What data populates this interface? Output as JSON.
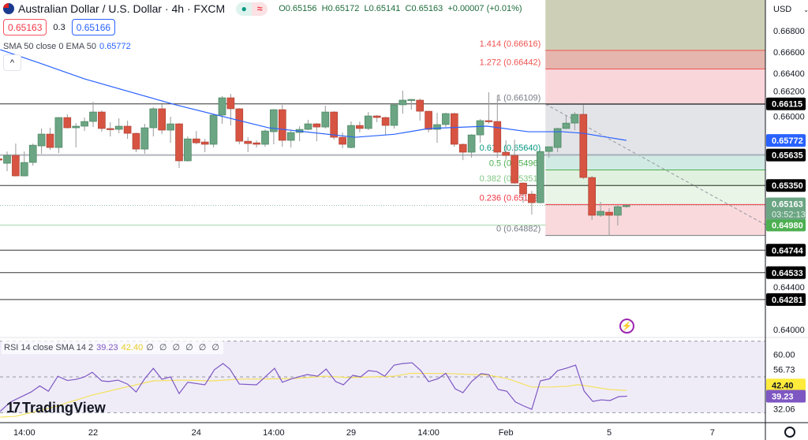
{
  "header": {
    "title": "Australian Dollar / U.S. Dollar · 4h · FXCM",
    "open": "O0.65156",
    "high": "H0.65172",
    "low": "L0.65141",
    "close": "C0.65163",
    "change": "+0.00007 (+0.01%)",
    "market_status_icon": "green-dot",
    "data_icon": "approx"
  },
  "trade": {
    "sell": "0.65163",
    "spread": "0.3",
    "buy": "0.65166"
  },
  "indicator": {
    "label": "SMA 50 close 0 EMA 50",
    "value": "0.65772"
  },
  "rsi_legend": {
    "label": "RSI 14 close SMA 14 2",
    "rsi": "39.23",
    "sma": "42.40",
    "nulls": "∅ ∅ ∅ ∅ ∅ ∅"
  },
  "currency": "USD",
  "logo": "TradingView",
  "colors": {
    "up": "#6ba583",
    "down": "#d75442",
    "ema": "#2962ff",
    "rsi": "#7e57c2",
    "rsi_sma": "#f5e15c",
    "rsi_bg": "#efecf8"
  },
  "chart_data": {
    "type": "candlestick",
    "price_axis": {
      "range": [
        0.6396,
        0.669
      ],
      "ticks": [
        "0.66800",
        "0.66600",
        "0.66400",
        "0.66200",
        "0.66000",
        "0.64400",
        "0.64000"
      ],
      "tick_values": [
        0.668,
        0.666,
        0.664,
        0.662,
        0.66,
        0.644,
        0.64
      ]
    },
    "time_labels": [
      "14:00",
      "22",
      "24",
      "14:00",
      "29",
      "14:00",
      "Feb",
      "5",
      "7"
    ],
    "time_label_index": [
      4,
      12,
      24,
      33,
      42,
      51,
      60,
      72,
      84
    ],
    "candles": [
      [
        0.656,
        0.6562,
        0.6557,
        0.65588
      ],
      [
        0.65558,
        0.65669,
        0.65484,
        0.65632
      ],
      [
        0.65632,
        0.65743,
        0.65435,
        0.6544
      ],
      [
        0.6544,
        0.65669,
        0.65435,
        0.65566
      ],
      [
        0.65566,
        0.65743,
        0.65536,
        0.65728
      ],
      [
        0.65721,
        0.65884,
        0.65647,
        0.65832
      ],
      [
        0.65832,
        0.65891,
        0.65684,
        0.65706
      ],
      [
        0.65706,
        0.6599,
        0.65654,
        0.65987
      ],
      [
        0.65987,
        0.66017,
        0.65884,
        0.65891
      ],
      [
        0.65891,
        0.65935,
        0.65706,
        0.65906
      ],
      [
        0.65906,
        0.65987,
        0.65861,
        0.6595
      ],
      [
        0.6595,
        0.66135,
        0.65898,
        0.66039
      ],
      [
        0.66039,
        0.66054,
        0.65854,
        0.65884
      ],
      [
        0.65884,
        0.65943,
        0.6581,
        0.65876
      ],
      [
        0.65876,
        0.6598,
        0.65839,
        0.65906
      ],
      [
        0.65906,
        0.65958,
        0.65787,
        0.65839
      ],
      [
        0.65839,
        0.65845,
        0.65662,
        0.65691
      ],
      [
        0.65691,
        0.65928,
        0.65647,
        0.65891
      ],
      [
        0.65891,
        0.66084,
        0.6581,
        0.66069
      ],
      [
        0.66069,
        0.66113,
        0.65832,
        0.65869
      ],
      [
        0.65869,
        0.65995,
        0.6575,
        0.65928
      ],
      [
        0.65928,
        0.65935,
        0.65514,
        0.65581
      ],
      [
        0.65581,
        0.6581,
        0.65575,
        0.65787
      ],
      [
        0.65787,
        0.65861,
        0.65736,
        0.6575
      ],
      [
        0.65758,
        0.65787,
        0.65662,
        0.65736
      ],
      [
        0.65736,
        0.66015,
        0.65706,
        0.6601
      ],
      [
        0.6601,
        0.66187,
        0.65928,
        0.66172
      ],
      [
        0.66172,
        0.66209,
        0.65913,
        0.66069
      ],
      [
        0.66069,
        0.66075,
        0.65736,
        0.65765
      ],
      [
        0.65765,
        0.65802,
        0.65662,
        0.65743
      ],
      [
        0.6575,
        0.65773,
        0.65706,
        0.65736
      ],
      [
        0.65736,
        0.65876,
        0.65713,
        0.65861
      ],
      [
        0.65854,
        0.66065,
        0.65736,
        0.66061
      ],
      [
        0.66061,
        0.66106,
        0.65713,
        0.65773
      ],
      [
        0.65773,
        0.65869,
        0.65706,
        0.65847
      ],
      [
        0.65847,
        0.65906,
        0.65765,
        0.65876
      ],
      [
        0.65876,
        0.65965,
        0.65869,
        0.65928
      ],
      [
        0.65928,
        0.65935,
        0.65765,
        0.65898
      ],
      [
        0.65898,
        0.66098,
        0.65884,
        0.66039
      ],
      [
        0.66039,
        0.66046,
        0.6578,
        0.65802
      ],
      [
        0.65802,
        0.65847,
        0.65699,
        0.65736
      ],
      [
        0.65706,
        0.6595,
        0.65699,
        0.65913
      ],
      [
        0.65913,
        0.6595,
        0.65847,
        0.65884
      ],
      [
        0.65884,
        0.66039,
        0.65869,
        0.66002
      ],
      [
        0.66002,
        0.6601,
        0.65943,
        0.65987
      ],
      [
        0.65987,
        0.65995,
        0.65824,
        0.65913
      ],
      [
        0.65913,
        0.66113,
        0.65884,
        0.66106
      ],
      [
        0.66106,
        0.66239,
        0.66024,
        0.6615
      ],
      [
        0.6615,
        0.6616,
        0.66061,
        0.66157
      ],
      [
        0.6615,
        0.66165,
        0.65958,
        0.66046
      ],
      [
        0.66046,
        0.6605,
        0.65847,
        0.65876
      ],
      [
        0.65876,
        0.66032,
        0.6575,
        0.65921
      ],
      [
        0.65921,
        0.66032,
        0.65898,
        0.66024
      ],
      [
        0.66024,
        0.66032,
        0.65713,
        0.65736
      ],
      [
        0.65736,
        0.65743,
        0.65588,
        0.65662
      ],
      [
        0.65662,
        0.6583,
        0.6561,
        0.65824
      ],
      [
        0.65824,
        0.65972,
        0.6575,
        0.65958
      ],
      [
        0.65958,
        0.66224,
        0.65928,
        0.6595
      ],
      [
        0.6595,
        0.66194,
        0.6561,
        0.65662
      ],
      [
        0.65662,
        0.65773,
        0.65595,
        0.65632
      ],
      [
        0.65632,
        0.6578,
        0.65366,
        0.65373
      ],
      [
        0.65373,
        0.6538,
        0.65189,
        0.6527
      ],
      [
        0.6527,
        0.653,
        0.65078,
        0.65189
      ],
      [
        0.65189,
        0.65675,
        0.65182,
        0.65669
      ],
      [
        0.65669,
        0.65715,
        0.6561,
        0.65713
      ],
      [
        0.65706,
        0.65891,
        0.65662,
        0.65884
      ],
      [
        0.65884,
        0.66002,
        0.6588,
        0.65935
      ],
      [
        0.65935,
        0.66039,
        0.65869,
        0.66017
      ],
      [
        0.66017,
        0.66106,
        0.6541,
        0.65425
      ],
      [
        0.65425,
        0.6544,
        0.65027,
        0.65071
      ],
      [
        0.65071,
        0.65196,
        0.65056,
        0.65108
      ],
      [
        0.651,
        0.65137,
        0.64882,
        0.65071
      ],
      [
        0.65071,
        0.65167,
        0.64975,
        0.65152
      ],
      [
        0.65156,
        0.65172,
        0.65141,
        0.65163
      ]
    ],
    "ema50": [
      [
        1.2,
        0.66623
      ],
      [
        5.8,
        0.66497
      ],
      [
        11,
        0.66349
      ],
      [
        21.6,
        0.66106
      ],
      [
        32.4,
        0.65891
      ],
      [
        42.5,
        0.65802
      ],
      [
        47,
        0.6583
      ],
      [
        51,
        0.65884
      ],
      [
        57.8,
        0.65906
      ],
      [
        62.6,
        0.65854
      ],
      [
        66.6,
        0.65854
      ],
      [
        69,
        0.65839
      ],
      [
        74,
        0.65773
      ]
    ],
    "horizontal_levels": [
      {
        "price": 0.66115,
        "label": "0.66115",
        "style": "black"
      },
      {
        "price": 0.65635,
        "label": "0.65635",
        "style": "black"
      },
      {
        "price": 0.6535,
        "label": "0.65350",
        "style": "black"
      },
      {
        "price": 0.64744,
        "label": "0.64744",
        "style": "black"
      },
      {
        "price": 0.64533,
        "label": "0.64533",
        "style": "black"
      },
      {
        "price": 0.64281,
        "label": "0.64281",
        "style": "black"
      },
      {
        "price": 0.6498,
        "label": "0.64980",
        "style": "green"
      }
    ],
    "ema_badge": {
      "price": 0.65772,
      "label": "0.65772"
    },
    "last_price": {
      "price": 0.65163,
      "label": "0.65163",
      "countdown": "03:52:13"
    },
    "fib": {
      "start_index": 64.5,
      "levels": [
        {
          "ratio": "1.414",
          "price": 0.66616,
          "label": "1.414 (0.66616)",
          "color": "#f05350",
          "fill": "#e5b6ae"
        },
        {
          "ratio": "1.272",
          "price": 0.66442,
          "label": "1.272 (0.66442)",
          "color": "#f05350",
          "fill": "#f9d6da"
        },
        {
          "ratio": "1",
          "price": 0.66109,
          "label": "1 (0.66109)",
          "color": "#787b86",
          "fill": "#e3e4e8"
        },
        {
          "ratio": "0.618",
          "price": 0.6564,
          "label": "0.618 (0.65640)",
          "color": "#089981",
          "fill": "#d1ebe4"
        },
        {
          "ratio": "0.5",
          "price": 0.65496,
          "label": "0.5 (0.65496)",
          "color": "#4caf50",
          "fill": "#e1f1df"
        },
        {
          "ratio": "0.382",
          "price": 0.65351,
          "label": "0.382 (0.65351)",
          "color": "#81c784",
          "fill": "#e9f5e7"
        },
        {
          "ratio": "0.236",
          "price": 0.65172,
          "label": "0.236 (0.65172)",
          "color": "#f23645",
          "fill": "#f9d9dc"
        },
        {
          "ratio": "0",
          "price": 0.64882,
          "label": "0 (0.64882)",
          "color": "#787b86",
          "fill": null
        }
      ],
      "top_fill": "#cdd0b6"
    },
    "rsi": {
      "range": [
        25,
        75
      ],
      "bands": [
        70,
        50,
        30
      ],
      "axis_labels": [
        "60.00",
        "56.73",
        "32.06"
      ],
      "values": [
        [
          1.2,
          30.8
        ],
        [
          2.4,
          36
        ],
        [
          4.8,
          41.6
        ],
        [
          5.8,
          45
        ],
        [
          6.8,
          42
        ],
        [
          7.9,
          50.4
        ],
        [
          9,
          48
        ],
        [
          10.1,
          48.7
        ],
        [
          11,
          50
        ],
        [
          11.9,
          52.6
        ],
        [
          13,
          47.8
        ],
        [
          13.8,
          47.4
        ],
        [
          14.9,
          48.2
        ],
        [
          16,
          46
        ],
        [
          17,
          41.6
        ],
        [
          18,
          49
        ],
        [
          19,
          54.8
        ],
        [
          20,
          48.7
        ],
        [
          21,
          50
        ],
        [
          22,
          40.7
        ],
        [
          23,
          47
        ],
        [
          25,
          45.6
        ],
        [
          26.1,
          54
        ],
        [
          27.1,
          57.5
        ],
        [
          27.9,
          54.4
        ],
        [
          29,
          46
        ],
        [
          31,
          45.6
        ],
        [
          33.1,
          54.8
        ],
        [
          34,
          47
        ],
        [
          35.1,
          49
        ],
        [
          36.9,
          51.3
        ],
        [
          38.1,
          50.4
        ],
        [
          39.1,
          54.4
        ],
        [
          40.2,
          47.4
        ],
        [
          41.1,
          45.6
        ],
        [
          42.2,
          50.9
        ],
        [
          43.1,
          50
        ],
        [
          44,
          53.5
        ],
        [
          45,
          53
        ],
        [
          45.9,
          50.4
        ],
        [
          47,
          56.6
        ],
        [
          48,
          57.5
        ],
        [
          49.1,
          57.9
        ],
        [
          50.1,
          53.5
        ],
        [
          51,
          47.4
        ],
        [
          52.1,
          49
        ],
        [
          53,
          52
        ],
        [
          54.1,
          43.4
        ],
        [
          55,
          41.2
        ],
        [
          56,
          47.4
        ],
        [
          57.1,
          51.8
        ],
        [
          58,
          51.3
        ],
        [
          59.1,
          43
        ],
        [
          60.1,
          42
        ],
        [
          61.1,
          36
        ],
        [
          62.1,
          33.7
        ],
        [
          63,
          31.9
        ],
        [
          64,
          47.8
        ],
        [
          65.1,
          49
        ],
        [
          66,
          53.5
        ],
        [
          67,
          54.8
        ],
        [
          68.1,
          56.6
        ],
        [
          69.1,
          42
        ],
        [
          70.1,
          36.3
        ],
        [
          71.1,
          37.2
        ],
        [
          72.1,
          36.8
        ],
        [
          73.1,
          39
        ],
        [
          74.1,
          39.23
        ]
      ],
      "sma": [
        [
          1.2,
          27.5
        ],
        [
          3,
          28
        ],
        [
          7.3,
          33
        ],
        [
          12,
          40
        ],
        [
          15,
          43.4
        ],
        [
          19,
          47.8
        ],
        [
          22.5,
          48.2
        ],
        [
          26,
          47.8
        ],
        [
          28.7,
          48.7
        ],
        [
          35,
          49
        ],
        [
          39,
          50.4
        ],
        [
          41.8,
          49.6
        ],
        [
          47,
          50.4
        ],
        [
          48.9,
          52
        ],
        [
          53.2,
          51.9
        ],
        [
          58,
          51
        ],
        [
          60.2,
          49
        ],
        [
          63,
          44.3
        ],
        [
          65.4,
          44.4
        ],
        [
          67,
          44.7
        ],
        [
          68.4,
          45.7
        ],
        [
          72,
          43
        ],
        [
          74,
          42.4
        ]
      ]
    }
  }
}
